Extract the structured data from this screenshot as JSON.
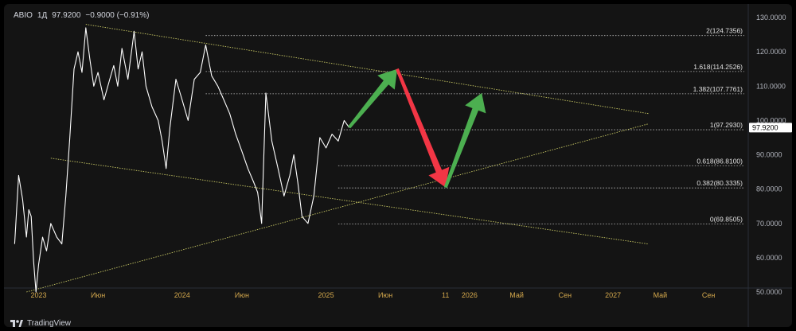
{
  "header": {
    "symbol": "ABIO",
    "timeframe": "1Д",
    "last": "97.9200",
    "change": "−0.9000 (−0.91%)"
  },
  "watermark": {
    "text": "TradingView"
  },
  "colors": {
    "background": "#141414",
    "price_line": "#ffffff",
    "trend_line": "#c8c864",
    "fib_line": "#c0c0c0",
    "axis_text": "#b2b5be",
    "date_text": "#d4a84c",
    "arrow_up": "#4caf50",
    "arrow_down": "#f23645",
    "price_tag_bg": "#ffffff"
  },
  "chart_data": {
    "type": "line",
    "title": "",
    "xlabel": "",
    "ylabel": "",
    "ylim": [
      50,
      130
    ],
    "y_ticks": [
      "130.0000",
      "120.0000",
      "110.0000",
      "100.0000",
      "90.0000",
      "80.0000",
      "70.0000",
      "60.0000",
      "50.0000"
    ],
    "x_ticks": [
      {
        "label": "2023",
        "x": "2023-01"
      },
      {
        "label": "Июн",
        "x": "2023-06"
      },
      {
        "label": "2024",
        "x": "2024-01"
      },
      {
        "label": "Июн",
        "x": "2024-06"
      },
      {
        "label": "2025",
        "x": "2025-01"
      },
      {
        "label": "Июн",
        "x": "2025-06"
      },
      {
        "label": "11",
        "x": "2025-11"
      },
      {
        "label": "2026",
        "x": "2026-01"
      },
      {
        "label": "Май",
        "x": "2026-05"
      },
      {
        "label": "Сен",
        "x": "2026-09"
      },
      {
        "label": "2027",
        "x": "2027-01"
      },
      {
        "label": "Май",
        "x": "2027-05"
      },
      {
        "label": "Сен",
        "x": "2027-09"
      }
    ],
    "current_price": {
      "value": 97.92,
      "label": "97.9200"
    },
    "fib_levels": [
      {
        "label": "2(124.7356)",
        "value": 124.7356
      },
      {
        "label": "1.618(114.2526)",
        "value": 114.2526
      },
      {
        "label": "1.382(107.7761)",
        "value": 107.7761
      },
      {
        "label": "1(97.2930)",
        "value": 97.293
      },
      {
        "label": "0.618(86.8100)",
        "value": 86.81
      },
      {
        "label": "0.382(80.3335)",
        "value": 80.3335
      },
      {
        "label": "0(69.8505)",
        "value": 69.8505
      }
    ],
    "series": [
      {
        "values": [
          [
            "2022-11",
            64
          ],
          [
            "2022-11",
            84
          ],
          [
            "2022-11",
            77
          ],
          [
            "2022-12",
            66
          ],
          [
            "2022-12",
            74
          ],
          [
            "2022-12",
            72
          ],
          [
            "2022-12",
            59
          ],
          [
            "2022-12",
            50
          ],
          [
            "2023-01",
            58
          ],
          [
            "2023-01",
            66
          ],
          [
            "2023-01",
            62
          ],
          [
            "2023-02",
            70
          ],
          [
            "2023-02",
            66
          ],
          [
            "2023-03",
            64
          ],
          [
            "2023-03",
            78
          ],
          [
            "2023-03",
            95
          ],
          [
            "2023-04",
            115
          ],
          [
            "2023-04",
            120
          ],
          [
            "2023-04",
            114
          ],
          [
            "2023-05",
            127
          ],
          [
            "2023-05",
            118
          ],
          [
            "2023-05",
            110
          ],
          [
            "2023-06",
            114
          ],
          [
            "2023-06",
            106
          ],
          [
            "2023-07",
            112
          ],
          [
            "2023-07",
            116
          ],
          [
            "2023-07",
            110
          ],
          [
            "2023-08",
            121
          ],
          [
            "2023-08",
            112
          ],
          [
            "2023-09",
            126
          ],
          [
            "2023-09",
            115
          ],
          [
            "2023-09",
            120
          ],
          [
            "2023-10",
            110
          ],
          [
            "2023-10",
            104
          ],
          [
            "2023-11",
            100
          ],
          [
            "2023-11",
            94
          ],
          [
            "2023-11",
            86
          ],
          [
            "2023-12",
            98
          ],
          [
            "2023-12",
            112
          ],
          [
            "2024-01",
            106
          ],
          [
            "2024-01",
            100
          ],
          [
            "2024-02",
            112
          ],
          [
            "2024-02",
            114
          ],
          [
            "2024-03",
            122
          ],
          [
            "2024-03",
            113
          ],
          [
            "2024-04",
            110
          ],
          [
            "2024-04",
            106
          ],
          [
            "2024-05",
            102
          ],
          [
            "2024-05",
            96
          ],
          [
            "2024-06",
            91
          ],
          [
            "2024-06",
            86
          ],
          [
            "2024-07",
            82
          ],
          [
            "2024-07",
            79
          ],
          [
            "2024-07",
            70
          ],
          [
            "2024-08",
            108
          ],
          [
            "2024-08",
            94
          ],
          [
            "2024-09",
            86
          ],
          [
            "2024-09",
            78
          ],
          [
            "2024-10",
            84
          ],
          [
            "2024-10",
            90
          ],
          [
            "2024-10",
            82
          ],
          [
            "2024-11",
            72
          ],
          [
            "2024-11",
            70
          ],
          [
            "2024-12",
            78
          ],
          [
            "2024-12",
            95
          ],
          [
            "2025-01",
            92
          ],
          [
            "2025-01",
            96
          ],
          [
            "2025-02",
            94
          ],
          [
            "2025-02",
            100
          ],
          [
            "2025-03",
            97.92
          ]
        ]
      }
    ],
    "trend_lines": [
      {
        "from": [
          "2023-05",
          128
        ],
        "to": [
          "2027-04",
          102
        ]
      },
      {
        "from": [
          "2023-02",
          89
        ],
        "to": [
          "2027-04",
          64
        ]
      },
      {
        "from": [
          "2022-12",
          50
        ],
        "to": [
          "2027-04",
          99
        ]
      }
    ],
    "arrows": [
      {
        "color": "up",
        "from": [
          "2025-03",
          98
        ],
        "to": [
          "2025-07",
          115
        ]
      },
      {
        "color": "down",
        "from": [
          "2025-07",
          115
        ],
        "to": [
          "2025-11",
          80.5
        ]
      },
      {
        "color": "up",
        "from": [
          "2025-11",
          80.5
        ],
        "to": [
          "2026-02",
          108
        ]
      }
    ]
  }
}
